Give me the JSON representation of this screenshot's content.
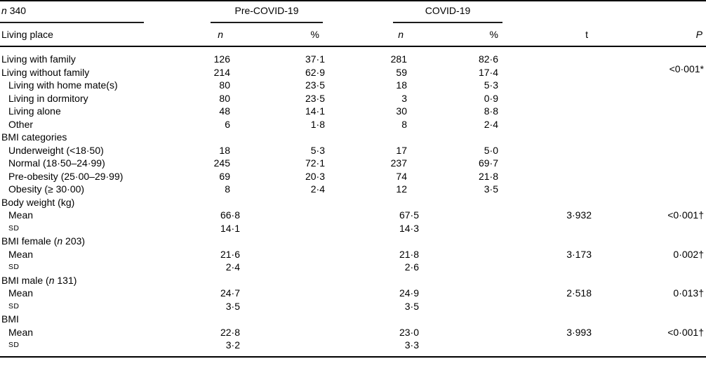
{
  "page": {
    "background": "#ffffff",
    "text_color": "#000000",
    "rule_color": "#1c1c1c"
  },
  "table": {
    "stub_header": {
      "n_italic": "n",
      "value": "340"
    },
    "groups": [
      {
        "label": "Pre-COVID-19"
      },
      {
        "label": "COVID-19"
      }
    ],
    "columns": {
      "stub": "Living place",
      "pre_n": "n",
      "pre_pct": "%",
      "covid_n": "n",
      "covid_pct": "%",
      "t": "t",
      "p": "P"
    },
    "rows": [
      {
        "label": [
          {
            "t": "Living with family"
          }
        ],
        "indent": 0,
        "pre_n": "126",
        "pre_pct": "37·1",
        "covid_n": "281",
        "covid_pct": "82·6",
        "t": "",
        "p": "<0·001*",
        "p_rowspan": 2
      },
      {
        "label": [
          {
            "t": "Living without family"
          }
        ],
        "indent": 0,
        "pre_n": "214",
        "pre_pct": "62·9",
        "covid_n": "59",
        "covid_pct": "17·4",
        "t": "",
        "p_skip": true
      },
      {
        "label": [
          {
            "t": "Living with home mate(s)"
          }
        ],
        "indent": 1,
        "pre_n": "80",
        "pre_pct": "23·5",
        "covid_n": "18",
        "covid_pct": "5·3",
        "t": "",
        "p": ""
      },
      {
        "label": [
          {
            "t": "Living in dormitory"
          }
        ],
        "indent": 1,
        "pre_n": "80",
        "pre_pct": "23·5",
        "covid_n": "3",
        "covid_pct": "0·9",
        "t": "",
        "p": ""
      },
      {
        "label": [
          {
            "t": "Living alone"
          }
        ],
        "indent": 1,
        "pre_n": "48",
        "pre_pct": "14·1",
        "covid_n": "30",
        "covid_pct": "8·8",
        "t": "",
        "p": ""
      },
      {
        "label": [
          {
            "t": "Other"
          }
        ],
        "indent": 1,
        "pre_n": "6",
        "pre_pct": "1·8",
        "covid_n": "8",
        "covid_pct": "2·4",
        "t": "",
        "p": ""
      },
      {
        "label": [
          {
            "t": "BMI categories"
          }
        ],
        "indent": 0,
        "pre_n": "",
        "pre_pct": "",
        "covid_n": "",
        "covid_pct": "",
        "t": "",
        "p": ""
      },
      {
        "label": [
          {
            "t": "Underweight (<18·50)"
          }
        ],
        "indent": 1,
        "pre_n": "18",
        "pre_pct": "5·3",
        "covid_n": "17",
        "covid_pct": "5·0",
        "t": "",
        "p": ""
      },
      {
        "label": [
          {
            "t": "Normal (18·50–24·99)"
          }
        ],
        "indent": 1,
        "pre_n": "245",
        "pre_pct": "72·1",
        "covid_n": "237",
        "covid_pct": "69·7",
        "t": "",
        "p": ""
      },
      {
        "label": [
          {
            "t": "Pre-obesity (25·00–29·99)"
          }
        ],
        "indent": 1,
        "pre_n": "69",
        "pre_pct": "20·3",
        "covid_n": "74",
        "covid_pct": "21·8",
        "t": "",
        "p": ""
      },
      {
        "label": [
          {
            "t": "Obesity (≥ 30·00)"
          }
        ],
        "indent": 1,
        "pre_n": "8",
        "pre_pct": "2·4",
        "covid_n": "12",
        "covid_pct": "3·5",
        "t": "",
        "p": ""
      },
      {
        "label": [
          {
            "t": "Body weight (kg)"
          }
        ],
        "indent": 0,
        "pre_n": "",
        "pre_pct": "",
        "covid_n": "",
        "covid_pct": "",
        "t": "",
        "p": ""
      },
      {
        "label": [
          {
            "t": "Mean"
          }
        ],
        "indent": 1,
        "dec": true,
        "pre_n": "66·8",
        "pre_pct": "",
        "covid_n": "67·5",
        "covid_pct": "",
        "t": "3·932",
        "p": "<0·001†"
      },
      {
        "label": [
          {
            "t": "SD"
          }
        ],
        "indent": 1,
        "sd": true,
        "dec": true,
        "pre_n": "14·1",
        "pre_pct": "",
        "covid_n": "14·3",
        "covid_pct": "",
        "t": "",
        "p": ""
      },
      {
        "label": [
          {
            "t": "BMI female ("
          },
          {
            "t": "n",
            "i": true
          },
          {
            "t": " 203)"
          }
        ],
        "indent": 0,
        "pre_n": "",
        "pre_pct": "",
        "covid_n": "",
        "covid_pct": "",
        "t": "",
        "p": ""
      },
      {
        "label": [
          {
            "t": "Mean"
          }
        ],
        "indent": 1,
        "dec": true,
        "pre_n": "21·6",
        "pre_pct": "",
        "covid_n": "21·8",
        "covid_pct": "",
        "t": "3·173",
        "p": "0·002†"
      },
      {
        "label": [
          {
            "t": "SD"
          }
        ],
        "indent": 1,
        "sd": true,
        "dec": true,
        "pre_n": "2·4",
        "pre_pct": "",
        "covid_n": "2·6",
        "covid_pct": "",
        "t": "",
        "p": ""
      },
      {
        "label": [
          {
            "t": "BMI male ("
          },
          {
            "t": "n",
            "i": true
          },
          {
            "t": " 131)"
          }
        ],
        "indent": 0,
        "pre_n": "",
        "pre_pct": "",
        "covid_n": "",
        "covid_pct": "",
        "t": "",
        "p": ""
      },
      {
        "label": [
          {
            "t": "Mean"
          }
        ],
        "indent": 1,
        "dec": true,
        "pre_n": "24·7",
        "pre_pct": "",
        "covid_n": "24·9",
        "covid_pct": "",
        "t": "2·518",
        "p": "0·013†"
      },
      {
        "label": [
          {
            "t": "SD"
          }
        ],
        "indent": 1,
        "sd": true,
        "dec": true,
        "pre_n": "3·5",
        "pre_pct": "",
        "covid_n": "3·5",
        "covid_pct": "",
        "t": "",
        "p": ""
      },
      {
        "label": [
          {
            "t": "BMI"
          }
        ],
        "indent": 0,
        "pre_n": "",
        "pre_pct": "",
        "covid_n": "",
        "covid_pct": "",
        "t": "",
        "p": ""
      },
      {
        "label": [
          {
            "t": "Mean"
          }
        ],
        "indent": 1,
        "dec": true,
        "pre_n": "22·8",
        "pre_pct": "",
        "covid_n": "23·0",
        "covid_pct": "",
        "t": "3·993",
        "p": "<0·001†"
      },
      {
        "label": [
          {
            "t": "SD"
          }
        ],
        "indent": 1,
        "sd": true,
        "dec": true,
        "pre_n": "3·2",
        "pre_pct": "",
        "covid_n": "3·3",
        "covid_pct": "",
        "t": "",
        "p": ""
      }
    ]
  }
}
